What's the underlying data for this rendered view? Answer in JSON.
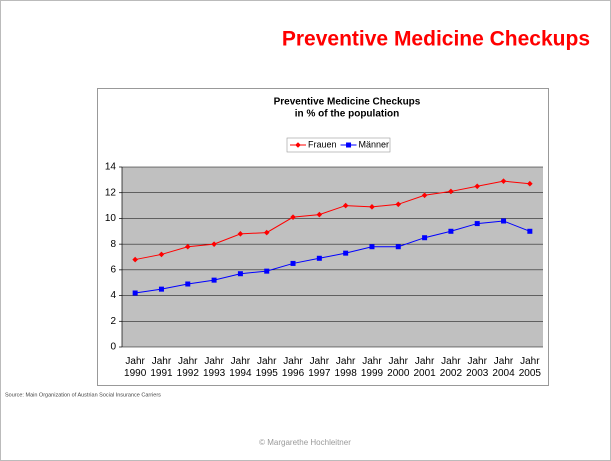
{
  "slide_title": "Preventive Medicine Checkups",
  "source": "Source: Main Organization of Austrian Social Insurance Carriers",
  "footer": "© Margarethe Hochleitner",
  "chart_data": {
    "type": "line",
    "title": "Preventive Medicine Checkups",
    "subtitle": "in % of the population",
    "categories": [
      "Jahr 1990",
      "Jahr 1991",
      "Jahr 1992",
      "Jahr 1993",
      "Jahr 1994",
      "Jahr 1995",
      "Jahr 1996",
      "Jahr 1997",
      "Jahr 1998",
      "Jahr 1999",
      "Jahr 2000",
      "Jahr 2001",
      "Jahr 2002",
      "Jahr 2003",
      "Jahr 2004",
      "Jahr 2005"
    ],
    "series": [
      {
        "name": "Frauen",
        "color": "#ff0000",
        "values": [
          6.8,
          7.2,
          7.8,
          8.0,
          8.8,
          8.9,
          10.1,
          10.3,
          11.0,
          10.9,
          11.1,
          11.8,
          12.1,
          12.5,
          12.9,
          12.7
        ]
      },
      {
        "name": "Männer",
        "color": "#0000ff",
        "values": [
          4.2,
          4.5,
          4.9,
          5.2,
          5.7,
          5.9,
          6.5,
          6.9,
          7.3,
          7.8,
          7.8,
          8.5,
          9.0,
          9.6,
          9.8,
          9.0
        ]
      }
    ],
    "ylim": [
      0,
      14
    ],
    "yticks": [
      0,
      2,
      4,
      6,
      8,
      10,
      12,
      14
    ],
    "grid": true,
    "legend": "top"
  }
}
